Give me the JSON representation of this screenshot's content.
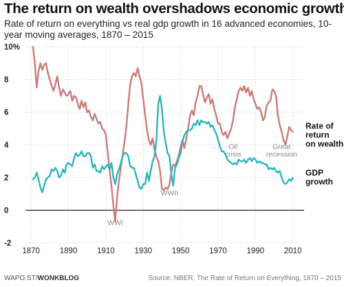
{
  "title": "The return on wealth overshadows economic growth",
  "subtitle": "Rate of return on everything vs real gdp growth in 16 advanced economies, 10-year moving averages, 1870 – 2015",
  "footer": {
    "source_site": "WAPO.ST/",
    "source_brand": "WONKBLOG",
    "source_note": "Source: NBER, The Rate of Return on Everything, 1870 – 2015"
  },
  "colors": {
    "return_line": "#cc7a7a",
    "gdp_line": "#2ab5be",
    "grid": "#d8d8d8",
    "zero_line": "#222222",
    "annotation": "#8a8a8a"
  },
  "chart_data": {
    "type": "line",
    "title": "The return on wealth overshadows economic growth",
    "xlabel": "",
    "ylabel": "",
    "xlim": [
      1867,
      2016
    ],
    "ylim": [
      -2,
      10
    ],
    "y_ticks": [
      {
        "value": 10,
        "label": "10%"
      },
      {
        "value": 8,
        "label": "8"
      },
      {
        "value": 6,
        "label": "6"
      },
      {
        "value": 4,
        "label": "4"
      },
      {
        "value": 2,
        "label": "2"
      },
      {
        "value": 0,
        "label": "0"
      },
      {
        "value": -2,
        "label": "-2"
      }
    ],
    "x_ticks": [
      {
        "value": 1870,
        "label": "1870"
      },
      {
        "value": 1890,
        "label": "1890"
      },
      {
        "value": 1910,
        "label": "1910"
      },
      {
        "value": 1930,
        "label": "1930"
      },
      {
        "value": 1950,
        "label": "1950"
      },
      {
        "value": 1970,
        "label": "1970"
      },
      {
        "value": 1990,
        "label": "1990"
      },
      {
        "value": 2010,
        "label": "2010"
      }
    ],
    "grid": true,
    "series": [
      {
        "name": "Rate of return on wealth",
        "label_lines": [
          "Rate of",
          "return",
          "on wealth"
        ],
        "points": [
          [
            1871,
            10.0
          ],
          [
            1872,
            9.0
          ],
          [
            1873,
            7.5
          ],
          [
            1874,
            8.5
          ],
          [
            1875,
            9.0
          ],
          [
            1876,
            8.6
          ],
          [
            1877,
            8.9
          ],
          [
            1878,
            9.0
          ],
          [
            1879,
            8.4
          ],
          [
            1880,
            8.0
          ],
          [
            1881,
            7.6
          ],
          [
            1882,
            7.3
          ],
          [
            1883,
            7.7
          ],
          [
            1884,
            8.2
          ],
          [
            1885,
            7.5
          ],
          [
            1886,
            7.0
          ],
          [
            1887,
            7.4
          ],
          [
            1888,
            7.2
          ],
          [
            1889,
            7.0
          ],
          [
            1890,
            7.1
          ],
          [
            1891,
            7.3
          ],
          [
            1892,
            6.7
          ],
          [
            1893,
            7.0
          ],
          [
            1894,
            6.9
          ],
          [
            1895,
            6.5
          ],
          [
            1896,
            6.2
          ],
          [
            1897,
            6.7
          ],
          [
            1898,
            6.3
          ],
          [
            1899,
            6.6
          ],
          [
            1900,
            6.0
          ],
          [
            1901,
            6.1
          ],
          [
            1902,
            5.7
          ],
          [
            1903,
            5.5
          ],
          [
            1904,
            5.9
          ],
          [
            1905,
            5.6
          ],
          [
            1906,
            5.3
          ],
          [
            1907,
            5.4
          ],
          [
            1908,
            5.0
          ],
          [
            1909,
            4.9
          ],
          [
            1910,
            4.6
          ],
          [
            1911,
            3.5
          ],
          [
            1912,
            2.5
          ],
          [
            1913,
            1.5
          ],
          [
            1914,
            0.3
          ],
          [
            1915,
            -0.7
          ],
          [
            1916,
            0.8
          ],
          [
            1917,
            1.8
          ],
          [
            1918,
            2.6
          ],
          [
            1919,
            3.4
          ],
          [
            1920,
            4.2
          ],
          [
            1921,
            5.2
          ],
          [
            1922,
            6.5
          ],
          [
            1923,
            7.7
          ],
          [
            1924,
            8.2
          ],
          [
            1925,
            8.4
          ],
          [
            1926,
            8.2
          ],
          [
            1927,
            8.7
          ],
          [
            1928,
            8.2
          ],
          [
            1929,
            7.8
          ],
          [
            1930,
            6.8
          ],
          [
            1931,
            5.8
          ],
          [
            1932,
            4.9
          ],
          [
            1933,
            4.3
          ],
          [
            1934,
            4.0
          ],
          [
            1935,
            4.4
          ],
          [
            1936,
            3.7
          ],
          [
            1937,
            3.3
          ],
          [
            1938,
            3.0
          ],
          [
            1939,
            2.4
          ],
          [
            1940,
            1.3
          ],
          [
            1941,
            1.2
          ],
          [
            1942,
            1.4
          ],
          [
            1943,
            1.3
          ],
          [
            1944,
            1.6
          ],
          [
            1945,
            2.3
          ],
          [
            1946,
            2.8
          ],
          [
            1947,
            2.7
          ],
          [
            1948,
            3.0
          ],
          [
            1949,
            3.4
          ],
          [
            1950,
            3.9
          ],
          [
            1951,
            4.3
          ],
          [
            1952,
            3.8
          ],
          [
            1953,
            4.4
          ],
          [
            1954,
            5.0
          ],
          [
            1955,
            5.8
          ],
          [
            1956,
            6.1
          ],
          [
            1957,
            5.8
          ],
          [
            1958,
            6.6
          ],
          [
            1959,
            7.0
          ],
          [
            1960,
            7.6
          ],
          [
            1961,
            7.6
          ],
          [
            1962,
            7.1
          ],
          [
            1963,
            6.6
          ],
          [
            1964,
            6.9
          ],
          [
            1965,
            7.1
          ],
          [
            1966,
            6.5
          ],
          [
            1967,
            6.8
          ],
          [
            1968,
            6.2
          ],
          [
            1969,
            5.8
          ],
          [
            1970,
            5.3
          ],
          [
            1971,
            5.3
          ],
          [
            1972,
            4.8
          ],
          [
            1973,
            4.6
          ],
          [
            1974,
            4.8
          ],
          [
            1975,
            4.4
          ],
          [
            1976,
            4.7
          ],
          [
            1977,
            5.0
          ],
          [
            1978,
            5.5
          ],
          [
            1979,
            6.3
          ],
          [
            1980,
            6.8
          ],
          [
            1981,
            7.3
          ],
          [
            1982,
            7.5
          ],
          [
            1983,
            7.3
          ],
          [
            1984,
            7.6
          ],
          [
            1985,
            7.2
          ],
          [
            1986,
            7.5
          ],
          [
            1987,
            7.0
          ],
          [
            1988,
            7.3
          ],
          [
            1989,
            6.8
          ],
          [
            1990,
            6.5
          ],
          [
            1991,
            6.2
          ],
          [
            1992,
            6.3
          ],
          [
            1993,
            6.0
          ],
          [
            1994,
            5.5
          ],
          [
            1995,
            5.7
          ],
          [
            1996,
            6.4
          ],
          [
            1997,
            6.6
          ],
          [
            1998,
            6.7
          ],
          [
            1999,
            7.4
          ],
          [
            2000,
            7.3
          ],
          [
            2001,
            7.0
          ],
          [
            2002,
            5.8
          ],
          [
            2003,
            5.2
          ],
          [
            2004,
            4.8
          ],
          [
            2005,
            4.3
          ],
          [
            2006,
            4.0
          ],
          [
            2007,
            4.5
          ],
          [
            2008,
            5.1
          ],
          [
            2009,
            4.9
          ],
          [
            2010,
            4.8
          ]
        ]
      },
      {
        "name": "GDP growth",
        "label_lines": [
          "GDP",
          "growth"
        ],
        "points": [
          [
            1871,
            1.9
          ],
          [
            1872,
            2.0
          ],
          [
            1873,
            2.3
          ],
          [
            1874,
            1.9
          ],
          [
            1875,
            1.4
          ],
          [
            1876,
            1.1
          ],
          [
            1877,
            1.5
          ],
          [
            1878,
            1.9
          ],
          [
            1879,
            2.0
          ],
          [
            1880,
            2.1
          ],
          [
            1881,
            2.5
          ],
          [
            1882,
            2.4
          ],
          [
            1883,
            2.6
          ],
          [
            1884,
            2.4
          ],
          [
            1885,
            2.0
          ],
          [
            1886,
            2.1
          ],
          [
            1887,
            2.5
          ],
          [
            1888,
            2.3
          ],
          [
            1889,
            2.8
          ],
          [
            1890,
            2.9
          ],
          [
            1891,
            2.8
          ],
          [
            1892,
            2.7
          ],
          [
            1893,
            3.2
          ],
          [
            1894,
            3.5
          ],
          [
            1895,
            3.3
          ],
          [
            1896,
            3.4
          ],
          [
            1897,
            3.6
          ],
          [
            1898,
            3.3
          ],
          [
            1899,
            3.3
          ],
          [
            1900,
            3.5
          ],
          [
            1901,
            3.5
          ],
          [
            1902,
            3.3
          ],
          [
            1903,
            2.6
          ],
          [
            1904,
            2.8
          ],
          [
            1905,
            2.4
          ],
          [
            1906,
            2.4
          ],
          [
            1907,
            2.3
          ],
          [
            1908,
            2.7
          ],
          [
            1909,
            2.5
          ],
          [
            1910,
            2.7
          ],
          [
            1911,
            2.8
          ],
          [
            1912,
            2.5
          ],
          [
            1913,
            2.9
          ],
          [
            1914,
            2.0
          ],
          [
            1915,
            1.6
          ],
          [
            1916,
            2.2
          ],
          [
            1917,
            2.5
          ],
          [
            1918,
            2.9
          ],
          [
            1919,
            3.3
          ],
          [
            1920,
            3.5
          ],
          [
            1921,
            3.5
          ],
          [
            1922,
            3.3
          ],
          [
            1923,
            2.7
          ],
          [
            1924,
            2.6
          ],
          [
            1925,
            2.6
          ],
          [
            1926,
            2.2
          ],
          [
            1927,
            1.8
          ],
          [
            1928,
            1.4
          ],
          [
            1929,
            1.3
          ],
          [
            1930,
            1.6
          ],
          [
            1931,
            1.6
          ],
          [
            1932,
            2.3
          ],
          [
            1933,
            1.8
          ],
          [
            1934,
            2.4
          ],
          [
            1935,
            3.0
          ],
          [
            1936,
            3.3
          ],
          [
            1937,
            4.3
          ],
          [
            1938,
            6.5
          ],
          [
            1939,
            7.0
          ],
          [
            1940,
            6.2
          ],
          [
            1941,
            4.8
          ],
          [
            1942,
            4.1
          ],
          [
            1943,
            3.5
          ],
          [
            1944,
            3.3
          ],
          [
            1945,
            2.2
          ],
          [
            1946,
            1.5
          ],
          [
            1947,
            2.6
          ],
          [
            1948,
            2.8
          ],
          [
            1949,
            3.2
          ],
          [
            1950,
            3.5
          ],
          [
            1951,
            4.2
          ],
          [
            1952,
            4.6
          ],
          [
            1953,
            4.8
          ],
          [
            1954,
            4.9
          ],
          [
            1955,
            4.9
          ],
          [
            1956,
            5.0
          ],
          [
            1957,
            5.3
          ],
          [
            1958,
            5.2
          ],
          [
            1959,
            5.5
          ],
          [
            1960,
            5.2
          ],
          [
            1961,
            5.5
          ],
          [
            1962,
            5.4
          ],
          [
            1963,
            5.4
          ],
          [
            1964,
            5.3
          ],
          [
            1965,
            5.4
          ],
          [
            1966,
            5.1
          ],
          [
            1967,
            5.2
          ],
          [
            1968,
            4.9
          ],
          [
            1969,
            4.7
          ],
          [
            1970,
            4.3
          ],
          [
            1971,
            3.9
          ],
          [
            1972,
            3.6
          ],
          [
            1973,
            3.6
          ],
          [
            1974,
            3.4
          ],
          [
            1975,
            3.1
          ],
          [
            1976,
            3.0
          ],
          [
            1977,
            2.9
          ],
          [
            1978,
            2.8
          ],
          [
            1979,
            2.9
          ],
          [
            1980,
            2.8
          ],
          [
            1981,
            3.1
          ],
          [
            1982,
            3.0
          ],
          [
            1983,
            3.0
          ],
          [
            1984,
            3.1
          ],
          [
            1985,
            2.9
          ],
          [
            1986,
            3.1
          ],
          [
            1987,
            3.2
          ],
          [
            1988,
            3.0
          ],
          [
            1989,
            3.2
          ],
          [
            1990,
            3.1
          ],
          [
            1991,
            2.9
          ],
          [
            1992,
            3.0
          ],
          [
            1993,
            2.9
          ],
          [
            1994,
            2.9
          ],
          [
            1995,
            2.8
          ],
          [
            1996,
            2.8
          ],
          [
            1997,
            2.5
          ],
          [
            1998,
            2.6
          ],
          [
            1999,
            2.5
          ],
          [
            2000,
            2.6
          ],
          [
            2001,
            2.4
          ],
          [
            2002,
            2.3
          ],
          [
            2003,
            2.4
          ],
          [
            2004,
            2.0
          ],
          [
            2005,
            1.7
          ],
          [
            2006,
            1.6
          ],
          [
            2007,
            1.7
          ],
          [
            2008,
            1.9
          ],
          [
            2009,
            1.8
          ],
          [
            2010,
            2.0
          ]
        ]
      }
    ],
    "annotations": [
      {
        "lines": [
          "WWI"
        ],
        "x": 1915,
        "y": -0.9
      },
      {
        "lines": [
          "WWII"
        ],
        "x": 1944,
        "y": 0.9
      },
      {
        "lines": [
          "Oil",
          "crisis"
        ],
        "x": 1978,
        "y": 3.75
      },
      {
        "lines": [
          "Great",
          "recession"
        ],
        "x": 2004,
        "y": 3.75
      }
    ]
  }
}
